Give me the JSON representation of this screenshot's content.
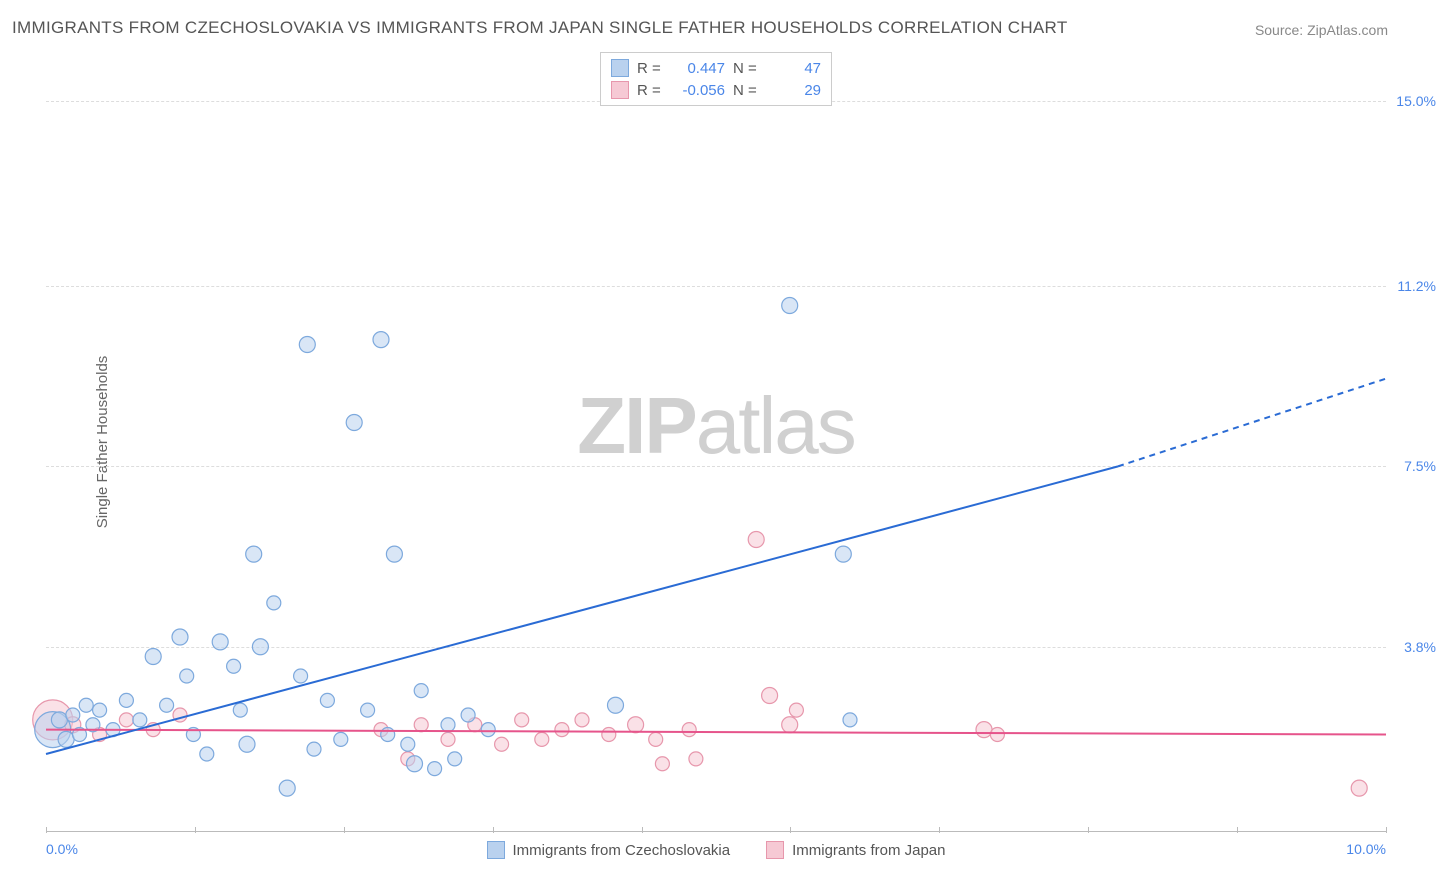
{
  "title": "IMMIGRANTS FROM CZECHOSLOVAKIA VS IMMIGRANTS FROM JAPAN SINGLE FATHER HOUSEHOLDS CORRELATION CHART",
  "source_prefix": "Source: ",
  "source_link": "ZipAtlas.com",
  "watermark_bold": "ZIP",
  "watermark_rest": "atlas",
  "yaxis_title": "Single Father Households",
  "chart": {
    "type": "scatter",
    "xlim": [
      0,
      10
    ],
    "ylim": [
      0,
      16
    ],
    "x_start_label": "0.0%",
    "x_end_label": "10.0%",
    "ytick_values": [
      3.8,
      7.5,
      11.2,
      15.0
    ],
    "ytick_labels": [
      "3.8%",
      "7.5%",
      "11.2%",
      "15.0%"
    ],
    "xtick_minor_count": 9,
    "background_color": "#ffffff",
    "grid_color": "#dddddd",
    "watermark_color": "#d0d0d0",
    "label_color": "#4a86e8"
  },
  "series": {
    "a": {
      "name": "Immigrants from Czechoslovakia",
      "color_fill": "#b9d1ee",
      "color_stroke": "#7da9dd",
      "line_color": "#2a6bd4",
      "R": "0.447",
      "N": "47",
      "trend": {
        "x1": 0,
        "y1": 1.6,
        "x2": 8.0,
        "y2": 7.5,
        "ext_x2": 10.0,
        "ext_y2": 9.3
      },
      "points": [
        {
          "x": 0.05,
          "y": 2.1,
          "r": 18
        },
        {
          "x": 0.1,
          "y": 2.3,
          "r": 8
        },
        {
          "x": 0.15,
          "y": 1.9,
          "r": 8
        },
        {
          "x": 0.2,
          "y": 2.4,
          "r": 7
        },
        {
          "x": 0.25,
          "y": 2.0,
          "r": 7
        },
        {
          "x": 0.3,
          "y": 2.6,
          "r": 7
        },
        {
          "x": 0.35,
          "y": 2.2,
          "r": 7
        },
        {
          "x": 0.4,
          "y": 2.5,
          "r": 7
        },
        {
          "x": 0.5,
          "y": 2.1,
          "r": 7
        },
        {
          "x": 0.6,
          "y": 2.7,
          "r": 7
        },
        {
          "x": 0.7,
          "y": 2.3,
          "r": 7
        },
        {
          "x": 0.8,
          "y": 3.6,
          "r": 8
        },
        {
          "x": 0.9,
          "y": 2.6,
          "r": 7
        },
        {
          "x": 1.0,
          "y": 4.0,
          "r": 8
        },
        {
          "x": 1.05,
          "y": 3.2,
          "r": 7
        },
        {
          "x": 1.1,
          "y": 2.0,
          "r": 7
        },
        {
          "x": 1.2,
          "y": 1.6,
          "r": 7
        },
        {
          "x": 1.3,
          "y": 3.9,
          "r": 8
        },
        {
          "x": 1.4,
          "y": 3.4,
          "r": 7
        },
        {
          "x": 1.45,
          "y": 2.5,
          "r": 7
        },
        {
          "x": 1.5,
          "y": 1.8,
          "r": 8
        },
        {
          "x": 1.55,
          "y": 5.7,
          "r": 8
        },
        {
          "x": 1.6,
          "y": 3.8,
          "r": 8
        },
        {
          "x": 1.7,
          "y": 4.7,
          "r": 7
        },
        {
          "x": 1.8,
          "y": 0.9,
          "r": 8
        },
        {
          "x": 1.9,
          "y": 3.2,
          "r": 7
        },
        {
          "x": 1.95,
          "y": 10.0,
          "r": 8
        },
        {
          "x": 2.0,
          "y": 1.7,
          "r": 7
        },
        {
          "x": 2.1,
          "y": 2.7,
          "r": 7
        },
        {
          "x": 2.2,
          "y": 1.9,
          "r": 7
        },
        {
          "x": 2.3,
          "y": 8.4,
          "r": 8
        },
        {
          "x": 2.4,
          "y": 2.5,
          "r": 7
        },
        {
          "x": 2.5,
          "y": 10.1,
          "r": 8
        },
        {
          "x": 2.55,
          "y": 2.0,
          "r": 7
        },
        {
          "x": 2.6,
          "y": 5.7,
          "r": 8
        },
        {
          "x": 2.7,
          "y": 1.8,
          "r": 7
        },
        {
          "x": 2.75,
          "y": 1.4,
          "r": 8
        },
        {
          "x": 2.8,
          "y": 2.9,
          "r": 7
        },
        {
          "x": 2.9,
          "y": 1.3,
          "r": 7
        },
        {
          "x": 3.0,
          "y": 2.2,
          "r": 7
        },
        {
          "x": 3.05,
          "y": 1.5,
          "r": 7
        },
        {
          "x": 3.15,
          "y": 2.4,
          "r": 7
        },
        {
          "x": 3.3,
          "y": 2.1,
          "r": 7
        },
        {
          "x": 4.25,
          "y": 2.6,
          "r": 8
        },
        {
          "x": 5.55,
          "y": 10.8,
          "r": 8
        },
        {
          "x": 5.95,
          "y": 5.7,
          "r": 8
        },
        {
          "x": 6.0,
          "y": 2.3,
          "r": 7
        }
      ]
    },
    "b": {
      "name": "Immigrants from Japan",
      "color_fill": "#f6c9d4",
      "color_stroke": "#e797ac",
      "line_color": "#e6548b",
      "R": "-0.056",
      "N": "29",
      "trend": {
        "x1": 0,
        "y1": 2.1,
        "x2": 10.0,
        "y2": 2.0
      },
      "points": [
        {
          "x": 0.05,
          "y": 2.3,
          "r": 20
        },
        {
          "x": 0.2,
          "y": 2.2,
          "r": 8
        },
        {
          "x": 0.4,
          "y": 2.0,
          "r": 7
        },
        {
          "x": 0.6,
          "y": 2.3,
          "r": 7
        },
        {
          "x": 0.8,
          "y": 2.1,
          "r": 7
        },
        {
          "x": 1.0,
          "y": 2.4,
          "r": 7
        },
        {
          "x": 2.5,
          "y": 2.1,
          "r": 7
        },
        {
          "x": 2.7,
          "y": 1.5,
          "r": 7
        },
        {
          "x": 2.8,
          "y": 2.2,
          "r": 7
        },
        {
          "x": 3.0,
          "y": 1.9,
          "r": 7
        },
        {
          "x": 3.2,
          "y": 2.2,
          "r": 7
        },
        {
          "x": 3.4,
          "y": 1.8,
          "r": 7
        },
        {
          "x": 3.55,
          "y": 2.3,
          "r": 7
        },
        {
          "x": 3.7,
          "y": 1.9,
          "r": 7
        },
        {
          "x": 3.85,
          "y": 2.1,
          "r": 7
        },
        {
          "x": 4.0,
          "y": 2.3,
          "r": 7
        },
        {
          "x": 4.2,
          "y": 2.0,
          "r": 7
        },
        {
          "x": 4.4,
          "y": 2.2,
          "r": 8
        },
        {
          "x": 4.55,
          "y": 1.9,
          "r": 7
        },
        {
          "x": 4.6,
          "y": 1.4,
          "r": 7
        },
        {
          "x": 4.8,
          "y": 2.1,
          "r": 7
        },
        {
          "x": 4.85,
          "y": 1.5,
          "r": 7
        },
        {
          "x": 5.3,
          "y": 6.0,
          "r": 8
        },
        {
          "x": 5.4,
          "y": 2.8,
          "r": 8
        },
        {
          "x": 5.55,
          "y": 2.2,
          "r": 8
        },
        {
          "x": 5.6,
          "y": 2.5,
          "r": 7
        },
        {
          "x": 7.0,
          "y": 2.1,
          "r": 8
        },
        {
          "x": 7.1,
          "y": 2.0,
          "r": 7
        },
        {
          "x": 9.8,
          "y": 0.9,
          "r": 8
        }
      ]
    }
  },
  "stats_labels": {
    "R": "R =",
    "N": "N ="
  }
}
